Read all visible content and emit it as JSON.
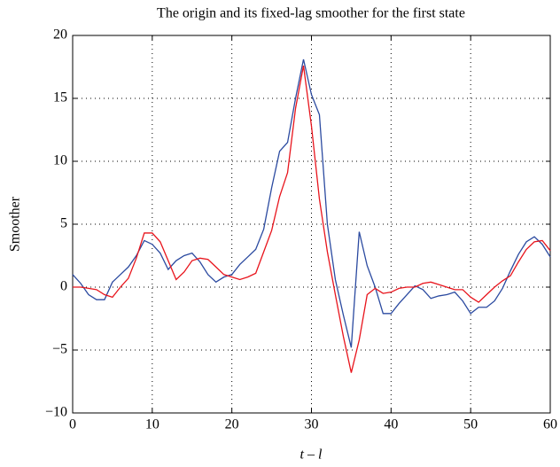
{
  "chart_data": {
    "type": "line",
    "title": "The origin and its fixed-lag smoother for the first state",
    "x_label": "t – l",
    "y_label": "Smoother",
    "x": [
      0,
      1,
      2,
      3,
      4,
      5,
      6,
      7,
      8,
      9,
      10,
      11,
      12,
      13,
      14,
      15,
      16,
      17,
      18,
      19,
      20,
      21,
      22,
      23,
      24,
      25,
      26,
      27,
      28,
      29,
      30,
      31,
      32,
      33,
      34,
      35,
      36,
      37,
      38,
      39,
      40,
      41,
      42,
      43,
      44,
      45,
      46,
      47,
      48,
      49,
      50,
      51,
      52,
      53,
      54,
      55,
      56,
      57,
      58,
      59,
      60
    ],
    "series": [
      {
        "color": "#2b4aa0",
        "values": [
          1.0,
          0.3,
          -0.6,
          -1.0,
          -1.0,
          0.4,
          1.0,
          1.6,
          2.5,
          3.7,
          3.4,
          2.7,
          1.4,
          2.1,
          2.5,
          2.7,
          2.0,
          1.0,
          0.4,
          0.8,
          1.0,
          1.8,
          2.4,
          3.0,
          4.6,
          7.9,
          10.8,
          11.5,
          15.0,
          18.1,
          15.3,
          13.7,
          5.0,
          0.6,
          -2.2,
          -4.8,
          4.4,
          1.7,
          0.0,
          -2.1,
          -2.1,
          -1.3,
          -0.6,
          0.1,
          -0.2,
          -0.9,
          -0.7,
          -0.6,
          -0.4,
          -1.1,
          -2.1,
          -1.6,
          -1.6,
          -1.1,
          -0.1,
          1.3,
          2.6,
          3.6,
          4.0,
          3.4,
          2.4
        ]
      },
      {
        "color": "#e8141c",
        "values": [
          0.0,
          0.0,
          -0.1,
          -0.2,
          -0.6,
          -0.8,
          0.0,
          0.7,
          2.3,
          4.3,
          4.3,
          3.6,
          2.1,
          0.6,
          1.2,
          2.1,
          2.3,
          2.2,
          1.6,
          1.0,
          0.8,
          0.6,
          0.8,
          1.1,
          2.8,
          4.5,
          7.2,
          9.1,
          14.2,
          17.6,
          12.8,
          7.0,
          2.8,
          -0.6,
          -3.9,
          -6.8,
          -4.2,
          -0.6,
          -0.1,
          -0.5,
          -0.4,
          -0.1,
          0.0,
          0.0,
          0.3,
          0.4,
          0.2,
          0.0,
          -0.2,
          -0.2,
          -0.8,
          -1.2,
          -0.6,
          0.0,
          0.5,
          0.9,
          2.0,
          3.0,
          3.6,
          3.7,
          2.9
        ]
      }
    ],
    "xlim": [
      0,
      60
    ],
    "xticks": [
      0,
      10,
      20,
      30,
      40,
      50,
      60
    ],
    "ylim": [
      -10,
      20
    ],
    "yticks": [
      {
        "value": -10,
        "label": "−10"
      },
      {
        "value": -5,
        "label": "−5"
      },
      0,
      5,
      10,
      15,
      20
    ],
    "grid": true
  }
}
